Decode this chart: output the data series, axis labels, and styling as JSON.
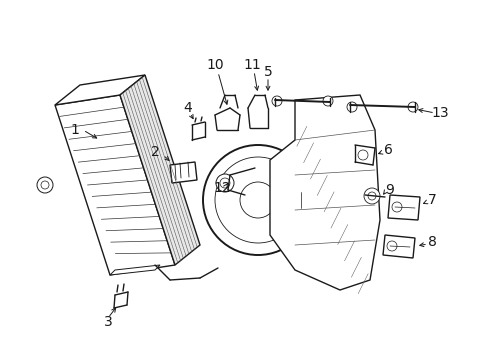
{
  "background_color": "#ffffff",
  "image_b64": ""
}
